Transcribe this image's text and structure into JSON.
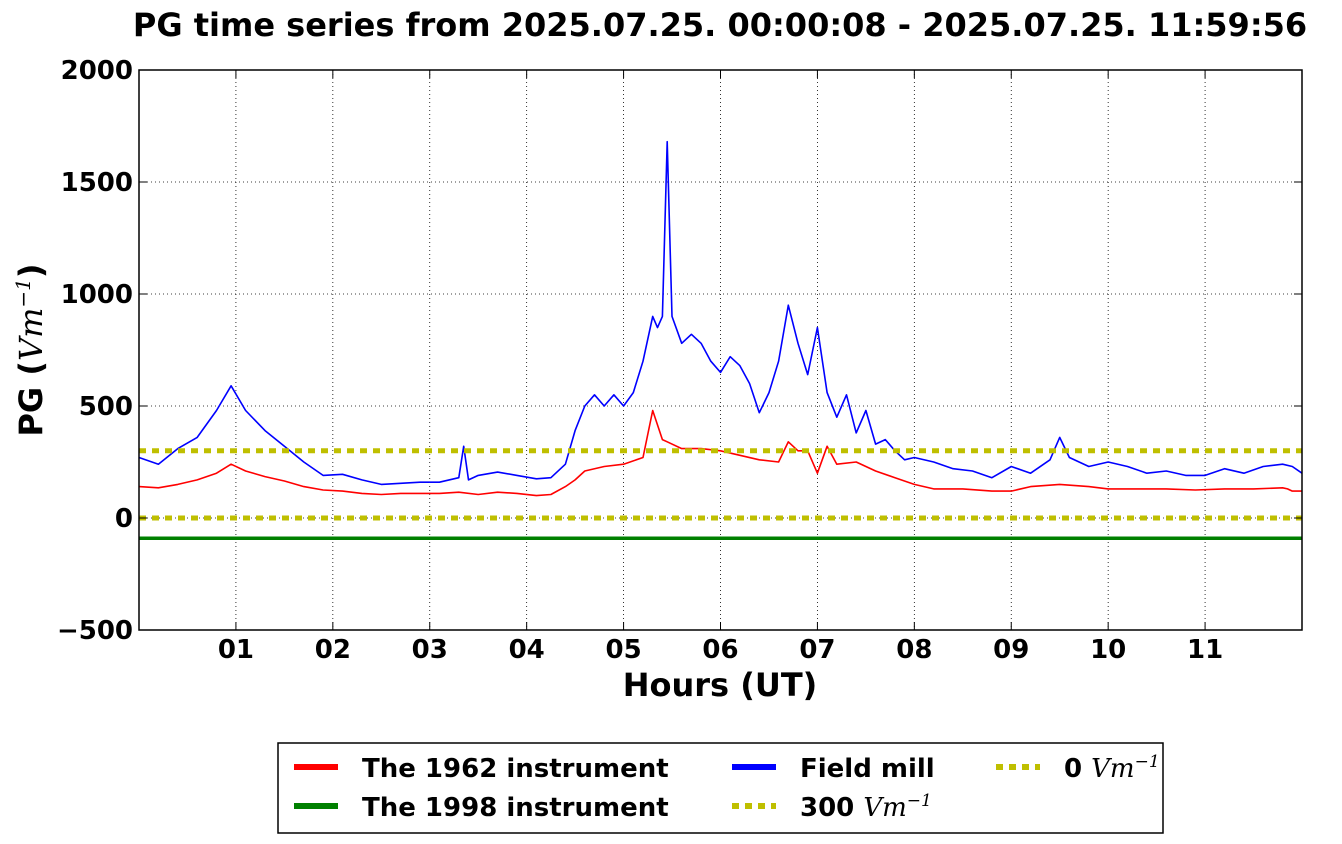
{
  "chart_data": {
    "type": "line",
    "title": "PG time series from 2025.07.25. 00:00:08 - 2025.07.25. 11:59:56",
    "xlabel": "Hours (UT)",
    "ylabel": "PG (",
    "ylabel_unit": "Vm",
    "ylabel_exp": "−1",
    "ylabel_close": ")",
    "xlim": [
      0,
      12
    ],
    "ylim": [
      -500,
      2000
    ],
    "yticks": [
      -500,
      0,
      500,
      1000,
      1500,
      2000
    ],
    "ytick_labels": [
      "−500",
      "0",
      "500",
      "1000",
      "1500",
      "2000"
    ],
    "xticks": [
      1,
      2,
      3,
      4,
      5,
      6,
      7,
      8,
      9,
      10,
      11
    ],
    "xtick_labels": [
      "01",
      "02",
      "03",
      "04",
      "05",
      "06",
      "07",
      "08",
      "09",
      "10",
      "11"
    ],
    "grid": true,
    "legend_position": "below",
    "series": [
      {
        "name": "The 1962 instrument",
        "color": "#ff0000",
        "x": [
          0.0,
          0.2,
          0.4,
          0.6,
          0.8,
          0.95,
          1.1,
          1.3,
          1.5,
          1.7,
          1.9,
          2.1,
          2.3,
          2.5,
          2.7,
          2.9,
          3.1,
          3.3,
          3.5,
          3.7,
          3.9,
          4.1,
          4.25,
          4.4,
          4.5,
          4.6,
          4.8,
          5.0,
          5.2,
          5.3,
          5.4,
          5.45,
          5.6,
          5.8,
          6.0,
          6.2,
          6.4,
          6.6,
          6.7,
          6.8,
          6.9,
          7.0,
          7.1,
          7.2,
          7.4,
          7.6,
          7.8,
          8.0,
          8.2,
          8.5,
          8.8,
          9.0,
          9.2,
          9.5,
          9.8,
          10.0,
          10.3,
          10.6,
          10.9,
          11.2,
          11.5,
          11.8,
          11.85,
          11.9,
          12.0
        ],
        "y": [
          140,
          135,
          150,
          170,
          200,
          240,
          210,
          185,
          165,
          140,
          125,
          120,
          110,
          105,
          110,
          110,
          110,
          115,
          105,
          115,
          110,
          100,
          105,
          140,
          170,
          210,
          230,
          240,
          270,
          480,
          350,
          340,
          310,
          310,
          300,
          280,
          260,
          250,
          340,
          300,
          300,
          200,
          320,
          240,
          250,
          210,
          180,
          150,
          130,
          130,
          120,
          120,
          140,
          150,
          140,
          130,
          130,
          130,
          125,
          130,
          130,
          135,
          130,
          120,
          120
        ]
      },
      {
        "name": "The 1998 instrument",
        "color": "#008000",
        "x": [
          0.0,
          12.0
        ],
        "y": [
          -90,
          -90
        ]
      },
      {
        "name": "Field mill",
        "color": "#0000ff",
        "x": [
          0.0,
          0.2,
          0.4,
          0.6,
          0.8,
          0.95,
          1.1,
          1.3,
          1.5,
          1.7,
          1.9,
          2.1,
          2.3,
          2.5,
          2.7,
          2.9,
          3.1,
          3.3,
          3.35,
          3.4,
          3.5,
          3.7,
          3.9,
          4.1,
          4.25,
          4.4,
          4.5,
          4.6,
          4.7,
          4.8,
          4.9,
          5.0,
          5.1,
          5.2,
          5.3,
          5.35,
          5.4,
          5.45,
          5.5,
          5.6,
          5.7,
          5.8,
          5.9,
          6.0,
          6.1,
          6.2,
          6.3,
          6.4,
          6.5,
          6.6,
          6.7,
          6.8,
          6.9,
          7.0,
          7.1,
          7.2,
          7.3,
          7.4,
          7.5,
          7.6,
          7.7,
          7.8,
          7.9,
          8.0,
          8.2,
          8.4,
          8.6,
          8.8,
          9.0,
          9.2,
          9.4,
          9.5,
          9.6,
          9.8,
          10.0,
          10.2,
          10.4,
          10.6,
          10.8,
          11.0,
          11.2,
          11.4,
          11.6,
          11.8,
          11.9,
          12.0
        ],
        "y": [
          270,
          240,
          310,
          360,
          480,
          590,
          480,
          390,
          320,
          250,
          190,
          195,
          170,
          150,
          155,
          160,
          160,
          180,
          320,
          170,
          190,
          205,
          190,
          175,
          180,
          240,
          390,
          500,
          550,
          500,
          550,
          500,
          560,
          700,
          900,
          850,
          900,
          1680,
          900,
          780,
          820,
          780,
          700,
          650,
          720,
          680,
          600,
          470,
          560,
          700,
          950,
          780,
          640,
          850,
          560,
          450,
          550,
          380,
          480,
          330,
          350,
          300,
          260,
          270,
          250,
          220,
          210,
          180,
          230,
          200,
          260,
          360,
          270,
          230,
          250,
          230,
          200,
          210,
          190,
          190,
          220,
          200,
          230,
          240,
          230,
          200
        ]
      },
      {
        "name": "300",
        "legend_unit": "Vm",
        "legend_exp": "−1",
        "color": "#bfbf00",
        "dashed": true,
        "x": [
          0.0,
          12.0
        ],
        "y": [
          300,
          300
        ]
      },
      {
        "name": "0",
        "legend_unit": "Vm",
        "legend_exp": "−1",
        "color": "#bfbf00",
        "dashed": true,
        "x": [
          0.0,
          12.0
        ],
        "y": [
          0,
          0
        ]
      }
    ]
  }
}
